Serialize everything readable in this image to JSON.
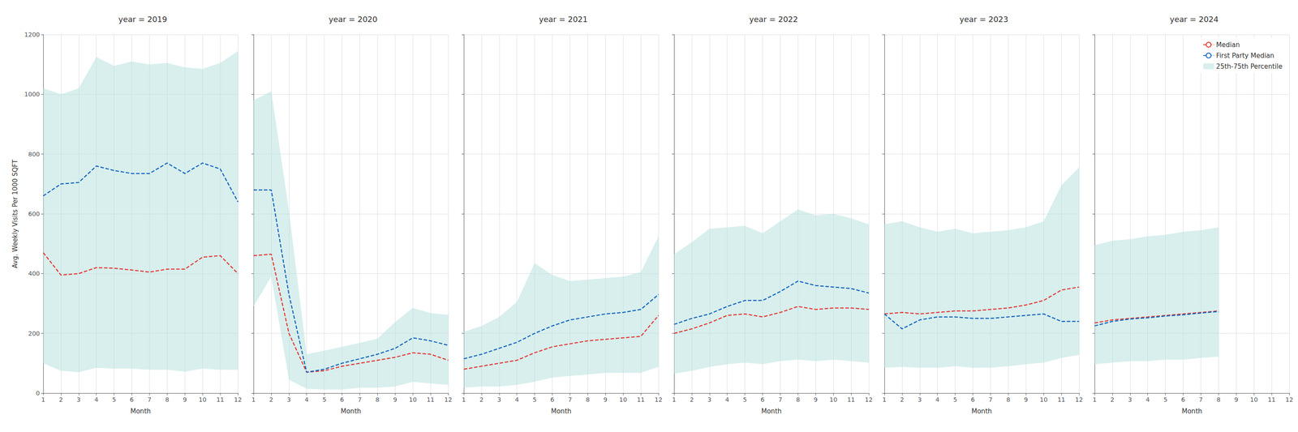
{
  "chart_data": [
    {
      "type": "line",
      "title": "year = 2019",
      "xlabel": "Month",
      "ylabel": "Avg. Weekly Visits Per 1000 SQFT",
      "x": [
        1,
        2,
        3,
        4,
        5,
        6,
        7,
        8,
        9,
        10,
        11,
        12
      ],
      "xlim": [
        1,
        12
      ],
      "xticks": [
        1,
        2,
        3,
        4,
        5,
        6,
        7,
        8,
        9,
        10,
        11,
        12
      ],
      "ylim": [
        0,
        1200
      ],
      "yticks": [
        0,
        200,
        400,
        600,
        800,
        1000,
        1200
      ],
      "grid": true,
      "series": [
        {
          "name": "Median",
          "color": "#e53935",
          "line_style": "dashed",
          "values": [
            470,
            395,
            400,
            420,
            418,
            412,
            405,
            415,
            415,
            455,
            460,
            400
          ]
        },
        {
          "name": "First Party Median",
          "color": "#1565c0",
          "line_style": "dashed",
          "values": [
            660,
            700,
            705,
            760,
            745,
            735,
            735,
            770,
            735,
            770,
            750,
            640
          ]
        },
        {
          "name": "25th-75th Percentile",
          "type": "band",
          "color": "#b2dfdb",
          "lower": [
            100,
            75,
            70,
            85,
            82,
            82,
            78,
            78,
            72,
            82,
            78,
            78
          ],
          "upper": [
            1020,
            1000,
            1020,
            1125,
            1095,
            1110,
            1100,
            1105,
            1090,
            1085,
            1105,
            1145
          ]
        }
      ]
    },
    {
      "type": "line",
      "title": "year = 2020",
      "xlabel": "Month",
      "tick_labels": "x",
      "x": [
        1,
        2,
        3,
        4,
        5,
        6,
        7,
        8,
        9,
        10,
        11,
        12
      ],
      "xlim": [
        1,
        12
      ],
      "xticks": [
        1,
        2,
        3,
        4,
        5,
        6,
        7,
        8,
        9,
        10,
        11,
        12
      ],
      "ylim": [
        0,
        1200
      ],
      "yticks": [
        0,
        200,
        400,
        600,
        800,
        1000,
        1200
      ],
      "grid": true,
      "series": [
        {
          "name": "Median",
          "color": "#e53935",
          "line_style": "dashed",
          "values": [
            460,
            465,
            200,
            70,
            75,
            90,
            100,
            110,
            120,
            135,
            130,
            110
          ]
        },
        {
          "name": "First Party Median",
          "color": "#1565c0",
          "line_style": "dashed",
          "values": [
            680,
            680,
            330,
            70,
            80,
            100,
            115,
            130,
            150,
            185,
            175,
            160
          ]
        },
        {
          "name": "25th-75th Percentile",
          "type": "band",
          "color": "#b2dfdb",
          "lower": [
            290,
            390,
            45,
            15,
            12,
            12,
            18,
            18,
            22,
            38,
            32,
            28
          ],
          "upper": [
            980,
            1010,
            610,
            130,
            142,
            155,
            168,
            182,
            238,
            285,
            268,
            262
          ]
        }
      ]
    },
    {
      "type": "line",
      "title": "year = 2021",
      "xlabel": "Month",
      "tick_labels": "x",
      "x": [
        1,
        2,
        3,
        4,
        5,
        6,
        7,
        8,
        9,
        10,
        11,
        12
      ],
      "xlim": [
        1,
        12
      ],
      "xticks": [
        1,
        2,
        3,
        4,
        5,
        6,
        7,
        8,
        9,
        10,
        11,
        12
      ],
      "ylim": [
        0,
        1200
      ],
      "yticks": [
        0,
        200,
        400,
        600,
        800,
        1000,
        1200
      ],
      "grid": true,
      "series": [
        {
          "name": "Median",
          "color": "#e53935",
          "line_style": "dashed",
          "values": [
            80,
            90,
            100,
            110,
            135,
            155,
            165,
            175,
            180,
            185,
            190,
            260
          ]
        },
        {
          "name": "First Party Median",
          "color": "#1565c0",
          "line_style": "dashed",
          "values": [
            115,
            130,
            150,
            170,
            200,
            225,
            245,
            255,
            265,
            270,
            280,
            330
          ]
        },
        {
          "name": "25th-75th Percentile",
          "type": "band",
          "color": "#b2dfdb",
          "lower": [
            18,
            22,
            22,
            28,
            38,
            52,
            58,
            62,
            68,
            68,
            68,
            88
          ],
          "upper": [
            205,
            225,
            255,
            305,
            435,
            395,
            375,
            380,
            385,
            390,
            405,
            525
          ]
        }
      ]
    },
    {
      "type": "line",
      "title": "year = 2022",
      "xlabel": "Month",
      "tick_labels": "x",
      "x": [
        1,
        2,
        3,
        4,
        5,
        6,
        7,
        8,
        9,
        10,
        11,
        12
      ],
      "xlim": [
        1,
        12
      ],
      "xticks": [
        1,
        2,
        3,
        4,
        5,
        6,
        7,
        8,
        9,
        10,
        11,
        12
      ],
      "ylim": [
        0,
        1200
      ],
      "yticks": [
        0,
        200,
        400,
        600,
        800,
        1000,
        1200
      ],
      "grid": true,
      "series": [
        {
          "name": "Median",
          "color": "#e53935",
          "line_style": "dashed",
          "values": [
            200,
            215,
            235,
            260,
            265,
            255,
            270,
            290,
            280,
            285,
            285,
            280
          ]
        },
        {
          "name": "First Party Median",
          "color": "#1565c0",
          "line_style": "dashed",
          "values": [
            230,
            250,
            265,
            290,
            310,
            310,
            340,
            375,
            360,
            355,
            350,
            335
          ]
        },
        {
          "name": "25th-75th Percentile",
          "type": "band",
          "color": "#b2dfdb",
          "lower": [
            65,
            75,
            88,
            97,
            102,
            97,
            107,
            112,
            107,
            112,
            107,
            102
          ],
          "upper": [
            465,
            505,
            550,
            555,
            560,
            535,
            575,
            615,
            595,
            600,
            585,
            565
          ]
        }
      ]
    },
    {
      "type": "line",
      "title": "year = 2023",
      "xlabel": "Month",
      "tick_labels": "x",
      "x": [
        1,
        2,
        3,
        4,
        5,
        6,
        7,
        8,
        9,
        10,
        11,
        12
      ],
      "xlim": [
        1,
        12
      ],
      "xticks": [
        1,
        2,
        3,
        4,
        5,
        6,
        7,
        8,
        9,
        10,
        11,
        12
      ],
      "ylim": [
        0,
        1200
      ],
      "yticks": [
        0,
        200,
        400,
        600,
        800,
        1000,
        1200
      ],
      "grid": true,
      "series": [
        {
          "name": "Median",
          "color": "#e53935",
          "line_style": "dashed",
          "values": [
            265,
            270,
            265,
            270,
            275,
            275,
            280,
            285,
            295,
            310,
            345,
            355
          ]
        },
        {
          "name": "First Party Median",
          "color": "#1565c0",
          "line_style": "dashed",
          "values": [
            265,
            215,
            245,
            255,
            255,
            250,
            250,
            255,
            260,
            265,
            240,
            240
          ]
        },
        {
          "name": "25th-75th Percentile",
          "type": "band",
          "color": "#b2dfdb",
          "lower": [
            85,
            88,
            85,
            85,
            90,
            85,
            85,
            90,
            97,
            102,
            118,
            128
          ],
          "upper": [
            565,
            575,
            555,
            540,
            550,
            535,
            540,
            545,
            555,
            575,
            695,
            755
          ]
        }
      ]
    },
    {
      "type": "line",
      "title": "year = 2024",
      "xlabel": "Month",
      "tick_labels": "x",
      "legend": "upper right",
      "x": [
        1,
        2,
        3,
        4,
        5,
        6,
        7,
        8,
        9,
        10,
        11,
        12
      ],
      "xlim": [
        1,
        12
      ],
      "xticks": [
        1,
        2,
        3,
        4,
        5,
        6,
        7,
        8,
        9,
        10,
        11,
        12
      ],
      "ylim": [
        0,
        1200
      ],
      "yticks": [
        0,
        200,
        400,
        600,
        800,
        1000,
        1200
      ],
      "grid": true,
      "series": [
        {
          "name": "Median",
          "color": "#e53935",
          "line_style": "dashed",
          "values": [
            235,
            245,
            250,
            255,
            260,
            265,
            270,
            275,
            null,
            null,
            null,
            null
          ]
        },
        {
          "name": "First Party Median",
          "color": "#1565c0",
          "line_style": "dashed",
          "values": [
            225,
            240,
            248,
            252,
            258,
            262,
            268,
            273,
            null,
            null,
            null,
            null
          ]
        },
        {
          "name": "25th-75th Percentile",
          "type": "band",
          "color": "#b2dfdb",
          "lower": [
            97,
            102,
            107,
            107,
            112,
            112,
            118,
            122,
            null,
            null,
            null,
            null
          ],
          "upper": [
            495,
            510,
            515,
            525,
            530,
            540,
            545,
            555,
            null,
            null,
            null,
            null
          ]
        }
      ]
    }
  ]
}
